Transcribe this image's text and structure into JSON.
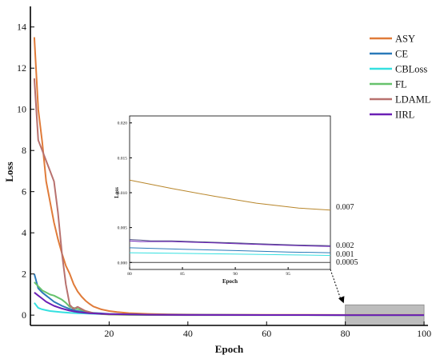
{
  "chart_data": [
    {
      "type": "line",
      "xlabel": "Epoch",
      "ylabel": "Loss",
      "xlim": [
        0,
        101
      ],
      "ylim": [
        -0.5,
        15
      ],
      "x_ticks": [
        20,
        40,
        60,
        80,
        100
      ],
      "y_ticks": [
        0,
        2,
        4,
        6,
        8,
        10,
        12,
        14
      ],
      "legend_position": "top-right",
      "grid": false,
      "highlight_region": {
        "x": [
          80,
          100
        ],
        "y": [
          -0.5,
          0.5
        ],
        "color": "#bdbdbd"
      },
      "series": [
        {
          "name": "ASY",
          "color": "#e07b39",
          "x": [
            1,
            2,
            3,
            4,
            5,
            6,
            7,
            8,
            9,
            10,
            11,
            12,
            13,
            14,
            15,
            16,
            18,
            20,
            22,
            25,
            30,
            35,
            40,
            50,
            60,
            70,
            80,
            90,
            100
          ],
          "y": [
            13.5,
            10.0,
            8.4,
            6.5,
            5.5,
            4.5,
            3.7,
            3.0,
            2.4,
            2.0,
            1.5,
            1.15,
            0.9,
            0.7,
            0.55,
            0.42,
            0.28,
            0.2,
            0.15,
            0.1,
            0.06,
            0.04,
            0.03,
            0.02,
            0.015,
            0.011,
            0.009,
            0.008,
            0.007
          ]
        },
        {
          "name": "CE",
          "color": "#2a7ab9",
          "x": [
            1,
            2,
            3,
            4,
            5,
            6,
            8,
            10,
            12,
            15,
            20,
            30,
            40,
            60,
            80,
            100
          ],
          "y": [
            2.0,
            1.3,
            1.1,
            0.95,
            0.8,
            0.65,
            0.45,
            0.3,
            0.2,
            0.12,
            0.06,
            0.02,
            0.01,
            0.005,
            0.003,
            0.002
          ]
        },
        {
          "name": "CBLoss",
          "color": "#35e0e0",
          "x": [
            1,
            2,
            3,
            4,
            5,
            6,
            8,
            10,
            12,
            15,
            20,
            30,
            40,
            60,
            80,
            100
          ],
          "y": [
            0.6,
            0.35,
            0.28,
            0.24,
            0.2,
            0.18,
            0.14,
            0.11,
            0.09,
            0.07,
            0.04,
            0.02,
            0.01,
            0.004,
            0.002,
            0.001
          ]
        },
        {
          "name": "FL",
          "color": "#66c26c",
          "x": [
            1,
            2,
            3,
            4,
            5,
            6,
            7,
            8,
            9,
            10,
            11,
            12,
            13,
            14,
            16,
            18,
            20,
            25,
            30,
            40,
            60,
            80,
            100
          ],
          "y": [
            1.6,
            1.4,
            1.2,
            1.1,
            1.0,
            0.95,
            0.85,
            0.75,
            0.6,
            0.4,
            0.35,
            0.3,
            0.25,
            0.2,
            0.1,
            0.05,
            0.03,
            0.01,
            0.005,
            0.002,
            0.001,
            0.0007,
            0.0005
          ]
        },
        {
          "name": "LDAML",
          "color": "#b8716e",
          "x": [
            1,
            2,
            3,
            4,
            5,
            6,
            7,
            8,
            9,
            10,
            11,
            12,
            13,
            14,
            16,
            18,
            20,
            30,
            40,
            60,
            80,
            100
          ],
          "y": [
            11.5,
            8.5,
            8.0,
            7.5,
            7.0,
            6.5,
            5.0,
            3.0,
            1.5,
            0.5,
            0.3,
            0.4,
            0.3,
            0.2,
            0.1,
            0.06,
            0.04,
            0.02,
            0.01,
            0.005,
            0.003,
            0.002
          ]
        },
        {
          "name": "IIRL",
          "color": "#6a1fb5",
          "x": [
            1,
            2,
            3,
            4,
            5,
            6,
            8,
            10,
            12,
            15,
            20,
            30,
            40,
            60,
            80,
            100
          ],
          "y": [
            1.1,
            0.95,
            0.8,
            0.65,
            0.55,
            0.45,
            0.32,
            0.22,
            0.15,
            0.09,
            0.05,
            0.02,
            0.01,
            0.005,
            0.003,
            0.002
          ]
        }
      ]
    },
    {
      "type": "line",
      "xlabel": "Epoch",
      "ylabel": "Loss",
      "xlim": [
        80,
        99
      ],
      "ylim": [
        -0.001,
        0.021
      ],
      "x_ticks": [
        80,
        85,
        90,
        95
      ],
      "y_ticks": [
        0.0,
        0.005,
        0.01,
        0.015,
        0.02
      ],
      "y_tick_labels": [
        "0.000",
        "0.005",
        "0.010",
        "0.015",
        "0.020"
      ],
      "grid": false,
      "series": [
        {
          "color": "#b8862b",
          "x": [
            80,
            84,
            88,
            92,
            96,
            99
          ],
          "y": [
            0.0118,
            0.0106,
            0.0095,
            0.0085,
            0.0078,
            0.0075
          ]
        },
        {
          "color": "#555588",
          "x": [
            80,
            81,
            82,
            84,
            86,
            88,
            90,
            92,
            94,
            96,
            99
          ],
          "y": [
            0.0033,
            0.0032,
            0.0031,
            0.0031,
            0.003,
            0.0029,
            0.0028,
            0.0027,
            0.0026,
            0.0025,
            0.0024
          ]
        },
        {
          "color": "#6a1fb5",
          "x": [
            80,
            81,
            82,
            84,
            86,
            88,
            90,
            92,
            94,
            96,
            99
          ],
          "y": [
            0.0031,
            0.003,
            0.003,
            0.003,
            0.0029,
            0.0028,
            0.0027,
            0.0026,
            0.0025,
            0.0024,
            0.0023
          ]
        },
        {
          "color": "#2a7ab9",
          "x": [
            80,
            85,
            90,
            95,
            99
          ],
          "y": [
            0.0021,
            0.0019,
            0.0017,
            0.0015,
            0.0014
          ]
        },
        {
          "color": "#35e0e0",
          "x": [
            80,
            85,
            90,
            95,
            99
          ],
          "y": [
            0.0014,
            0.0013,
            0.0012,
            0.0011,
            0.001
          ]
        },
        {
          "color": "#444444",
          "x": [
            80,
            99
          ],
          "y": [
            0.0,
            0.0
          ]
        }
      ],
      "annotations": [
        "0.007",
        "0.002",
        "0.001",
        "0.0005"
      ]
    }
  ]
}
